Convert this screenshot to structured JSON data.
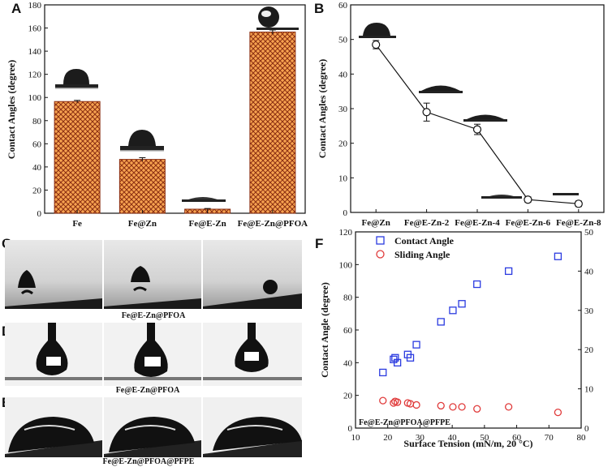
{
  "panel_labels": {
    "a": "A",
    "b": "B",
    "c": "C",
    "d": "D",
    "e": "E",
    "f": "F"
  },
  "chart_data": [
    {
      "id": "A",
      "type": "bar",
      "ylabel": "Contact Angles (degree)",
      "ylim": [
        0,
        180
      ],
      "yticks": [
        0,
        20,
        40,
        60,
        80,
        100,
        120,
        140,
        160,
        180
      ],
      "categories": [
        "Fe",
        "Fe@Zn",
        "Fe@E-Zn",
        "Fe@E-Zn@PFOA"
      ],
      "values": [
        96.5,
        46.5,
        3.5,
        156.5
      ],
      "errors": [
        1,
        1.5,
        0.6,
        1.8
      ],
      "colors": {
        "fill": "#f7a350",
        "hatch": "#8a2e12"
      }
    },
    {
      "id": "B",
      "type": "line",
      "ylabel": "Contact Angles (degree)",
      "ylim": [
        0,
        60
      ],
      "yticks": [
        0,
        10,
        20,
        30,
        40,
        50,
        60
      ],
      "categories": [
        "Fe@Zn",
        "Fe@E-Zn-2",
        "Fe@E-Zn-4",
        "Fe@E-Zn-6",
        "Fe@E-Zn-8"
      ],
      "values": [
        48.5,
        29,
        24,
        3.7,
        2.5
      ],
      "errors": [
        1.2,
        2.6,
        1.5,
        0.8,
        0.8
      ]
    },
    {
      "id": "F",
      "type": "scatter",
      "xlabel": "Surface Tension (mN/m, 20 °C)",
      "ylabel": "Contact Angle (degree)",
      "xlim": [
        10,
        80
      ],
      "ylim": [
        0,
        120
      ],
      "y2lim": [
        0,
        50
      ],
      "xticks": [
        10,
        20,
        30,
        40,
        50,
        60,
        70,
        80
      ],
      "yticks": [
        0,
        20,
        40,
        60,
        80,
        100,
        120
      ],
      "y2ticks": [
        0,
        10,
        20,
        30,
        40,
        50
      ],
      "annotation": "Fe@E-Zn@PFOA@PFPE",
      "series": [
        {
          "name": "Contact Angle",
          "marker": "square",
          "color": "#2b3be0",
          "axis": "left",
          "x": [
            18.5,
            21.8,
            22.3,
            23.0,
            26.2,
            27.0,
            28.9,
            36.5,
            40.2,
            43.0,
            47.7,
            57.5,
            72.8
          ],
          "y": [
            34,
            42,
            43,
            40,
            45,
            43,
            51,
            65,
            72,
            76,
            88,
            96,
            105
          ]
        },
        {
          "name": "Sliding Angle",
          "marker": "circle",
          "color": "#e03a3a",
          "axis": "right",
          "x": [
            18.5,
            21.8,
            22.3,
            23.0,
            26.2,
            27.0,
            28.9,
            36.5,
            40.2,
            43.0,
            47.7,
            57.5,
            72.8
          ],
          "y": [
            7,
            6.4,
            6.8,
            6.6,
            6.4,
            6.2,
            5.9,
            5.7,
            5.4,
            5.4,
            4.9,
            5.4,
            4.0
          ]
        }
      ]
    }
  ],
  "photo_captions": {
    "c": "Fe@E-Zn@PFOA",
    "d": "Fe@E-Zn@PFOA",
    "e": "Fe@E-Zn@PFOA@PFPE"
  }
}
